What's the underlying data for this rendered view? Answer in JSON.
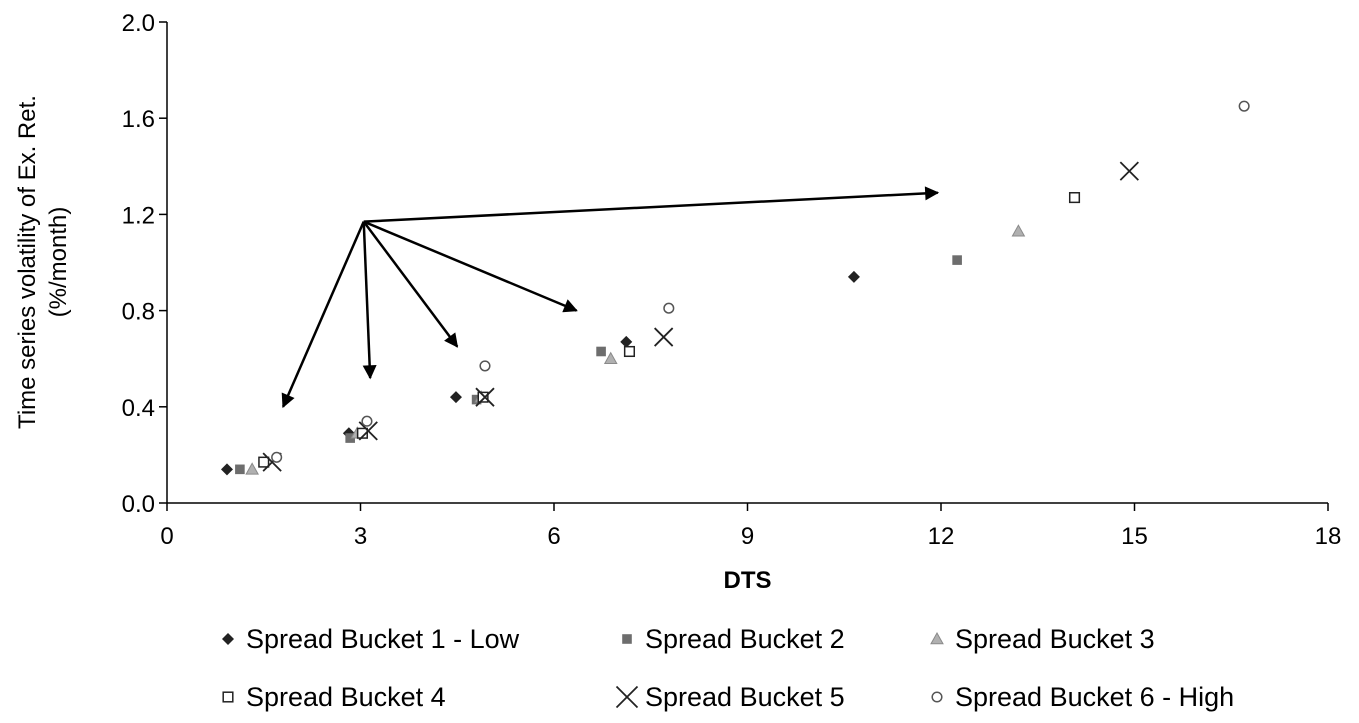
{
  "chart_data": {
    "type": "scatter",
    "title": "",
    "xlabel": "DTS",
    "ylabel_lines": [
      "Time series volatility of Ex. Ret.",
      "(%/month)"
    ],
    "xlim": [
      0,
      18
    ],
    "ylim": [
      0,
      2.0
    ],
    "x_ticks": [
      0,
      3,
      6,
      9,
      12,
      15,
      18
    ],
    "x_tick_labels": [
      "0",
      "3",
      "6",
      "9",
      "12",
      "15",
      "18"
    ],
    "y_ticks": [
      0,
      0.4,
      0.8,
      1.2,
      1.6,
      2.0
    ],
    "y_tick_labels": [
      "0.0",
      "0.4",
      "0.8",
      "1.2",
      "1.6",
      "2.0"
    ],
    "grid": false,
    "legend_position": "bottom",
    "series": [
      {
        "name": "Spread Bucket 1 - Low",
        "marker": "diamond",
        "color": "#222222",
        "x": [
          0.93,
          2.82,
          4.48,
          7.12,
          10.65
        ],
        "y": [
          0.14,
          0.29,
          0.44,
          0.67,
          0.94
        ]
      },
      {
        "name": "Spread Bucket 2",
        "marker": "square-filled",
        "color": "#6d6d6d",
        "x": [
          1.13,
          2.84,
          4.8,
          6.73,
          12.25
        ],
        "y": [
          0.14,
          0.27,
          0.43,
          0.63,
          1.01
        ]
      },
      {
        "name": "Spread Bucket 3",
        "marker": "triangle",
        "color": "#b0b0b0",
        "x": [
          1.32,
          2.95,
          4.87,
          6.88,
          13.2
        ],
        "y": [
          0.14,
          0.29,
          0.44,
          0.6,
          1.13
        ]
      },
      {
        "name": "Spread Bucket 4",
        "marker": "square-open",
        "color": "#222222",
        "x": [
          1.5,
          3.03,
          4.9,
          7.17,
          14.07
        ],
        "y": [
          0.17,
          0.29,
          0.44,
          0.63,
          1.27
        ]
      },
      {
        "name": "Spread Bucket 5",
        "marker": "x",
        "color": "#222222",
        "x": [
          1.63,
          3.12,
          4.93,
          7.7,
          14.92
        ],
        "y": [
          0.17,
          0.3,
          0.44,
          0.69,
          1.38
        ]
      },
      {
        "name": "Spread Bucket 6 - High",
        "marker": "circle-open",
        "color": "#555555",
        "x": [
          1.7,
          3.1,
          4.93,
          7.78,
          16.7
        ],
        "y": [
          0.19,
          0.34,
          0.57,
          0.81,
          1.65
        ]
      }
    ],
    "annotations": {
      "arrows": [
        {
          "from": [
            3.05,
            1.17
          ],
          "to": [
            1.8,
            0.4
          ]
        },
        {
          "from": [
            3.05,
            1.17
          ],
          "to": [
            3.15,
            0.52
          ]
        },
        {
          "from": [
            3.05,
            1.17
          ],
          "to": [
            4.5,
            0.65
          ]
        },
        {
          "from": [
            3.05,
            1.17
          ],
          "to": [
            6.35,
            0.8
          ]
        },
        {
          "from": [
            3.05,
            1.17
          ],
          "to": [
            11.95,
            1.29
          ]
        }
      ]
    }
  }
}
